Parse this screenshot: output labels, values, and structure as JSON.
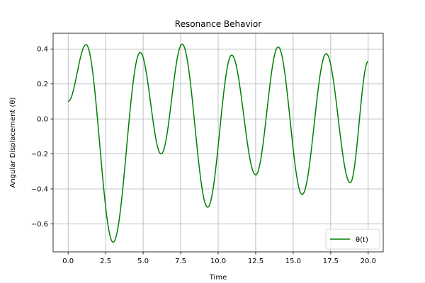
{
  "chart_data": {
    "type": "line",
    "title": "Resonance Behavior",
    "xlabel": "Time",
    "ylabel": "Angular Displacement (θ)",
    "xlim": [
      -1.0,
      21.0
    ],
    "ylim": [
      -0.76,
      0.49
    ],
    "xticks": [
      0.0,
      2.5,
      5.0,
      7.5,
      10.0,
      12.5,
      15.0,
      17.5,
      20.0
    ],
    "xtick_labels": [
      "0.0",
      "2.5",
      "5.0",
      "7.5",
      "10.0",
      "12.5",
      "15.0",
      "17.5",
      "20.0"
    ],
    "yticks": [
      -0.6,
      -0.4,
      -0.2,
      0.0,
      0.2,
      0.4
    ],
    "ytick_labels": [
      "−0.6",
      "−0.4",
      "−0.2",
      "0.0",
      "0.2",
      "0.4"
    ],
    "grid": true,
    "legend_position": "lower-right",
    "series": [
      {
        "name": "θ(t)",
        "color": "#008000",
        "extrema": [
          [
            0.0,
            0.1
          ],
          [
            1.2,
            0.425
          ],
          [
            3.0,
            -0.705
          ],
          [
            4.8,
            0.38
          ],
          [
            6.2,
            -0.2
          ],
          [
            7.6,
            0.428
          ],
          [
            9.3,
            -0.505
          ],
          [
            10.9,
            0.365
          ],
          [
            12.5,
            -0.32
          ],
          [
            14.0,
            0.412
          ],
          [
            15.6,
            -0.432
          ],
          [
            17.2,
            0.373
          ],
          [
            18.8,
            -0.365
          ],
          [
            20.0,
            0.33
          ]
        ]
      }
    ]
  }
}
